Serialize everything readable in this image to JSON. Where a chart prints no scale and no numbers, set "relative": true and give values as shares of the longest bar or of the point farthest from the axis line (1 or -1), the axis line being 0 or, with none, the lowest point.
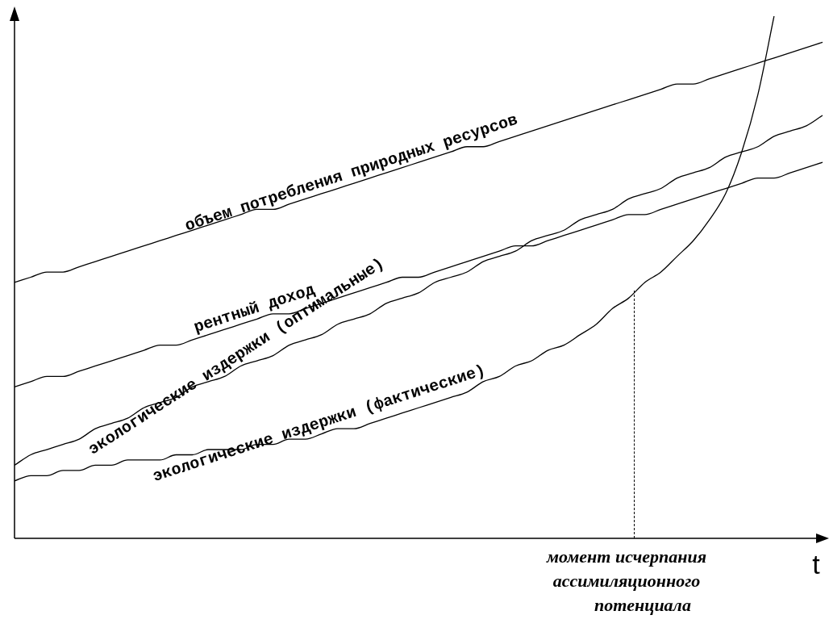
{
  "chart_data": {
    "type": "line",
    "relative": true,
    "xlabel": "t",
    "categories": [
      null,
      null,
      null,
      null,
      null,
      null,
      null,
      null,
      null,
      null,
      null,
      null,
      null,
      null,
      null,
      null,
      null,
      null,
      null,
      null,
      null,
      null,
      null,
      null,
      null,
      null,
      null,
      null,
      null,
      null,
      null,
      null,
      null,
      null,
      null,
      null,
      null,
      null,
      null,
      null,
      null,
      null,
      null,
      null,
      null,
      null,
      null,
      null,
      null,
      null,
      null
    ],
    "series": [
      {
        "name": "объем потребления природных ресурсов",
        "color": "#000000",
        "values": [
          0.49,
          0.5,
          0.51,
          0.51,
          0.52,
          0.53,
          0.54,
          0.55,
          0.56,
          0.57,
          0.58,
          0.59,
          0.6,
          0.61,
          0.62,
          0.63,
          0.63,
          0.64,
          0.65,
          0.66,
          0.67,
          0.68,
          0.69,
          0.7,
          0.71,
          0.72,
          0.73,
          0.74,
          0.75,
          0.75,
          0.76,
          0.77,
          0.78,
          0.79,
          0.8,
          0.81,
          0.82,
          0.83,
          0.84,
          0.85,
          0.86,
          0.87,
          0.87,
          0.88,
          0.89,
          0.9,
          0.91,
          0.92,
          0.93,
          0.94,
          0.95
        ]
      },
      {
        "name": "рентный доход",
        "color": "#000000",
        "values": [
          0.29,
          0.3,
          0.31,
          0.31,
          0.32,
          0.33,
          0.34,
          0.35,
          0.36,
          0.37,
          0.37,
          0.38,
          0.39,
          0.4,
          0.41,
          0.42,
          0.43,
          0.43,
          0.44,
          0.45,
          0.46,
          0.47,
          0.48,
          0.49,
          0.5,
          0.5,
          0.51,
          0.52,
          0.53,
          0.54,
          0.55,
          0.56,
          0.56,
          0.57,
          0.58,
          0.59,
          0.6,
          0.61,
          0.62,
          0.62,
          0.63,
          0.64,
          0.65,
          0.66,
          0.67,
          0.68,
          0.69,
          0.69,
          0.7,
          0.71,
          0.72
        ]
      },
      {
        "name": "экологические издержки (оптимальные)",
        "color": "#000000",
        "values": [
          0.14,
          0.16,
          0.17,
          0.18,
          0.19,
          0.21,
          0.22,
          0.23,
          0.25,
          0.26,
          0.27,
          0.29,
          0.3,
          0.31,
          0.33,
          0.34,
          0.35,
          0.37,
          0.38,
          0.39,
          0.41,
          0.42,
          0.43,
          0.45,
          0.46,
          0.47,
          0.49,
          0.5,
          0.51,
          0.53,
          0.54,
          0.55,
          0.57,
          0.58,
          0.59,
          0.61,
          0.62,
          0.63,
          0.65,
          0.66,
          0.67,
          0.69,
          0.7,
          0.71,
          0.73,
          0.74,
          0.75,
          0.77,
          0.78,
          0.79,
          0.81
        ]
      },
      {
        "name": "экологические издержки (фактические)",
        "color": "#000000",
        "values": [
          0.11,
          0.12,
          0.12,
          0.13,
          0.13,
          0.14,
          0.14,
          0.15,
          0.15,
          0.15,
          0.16,
          0.16,
          0.17,
          0.17,
          0.17,
          0.18,
          0.18,
          0.19,
          0.19,
          0.2,
          0.21,
          0.21,
          0.22,
          0.23,
          0.24,
          0.25,
          0.26,
          0.27,
          0.28,
          0.3,
          0.31,
          0.33,
          0.34,
          0.36,
          0.37,
          0.39,
          0.41,
          0.44,
          0.46,
          0.49,
          0.51,
          0.54,
          0.57,
          0.61,
          0.66,
          0.74,
          0.85,
          1.0,
          null,
          null,
          null
        ]
      }
    ],
    "annotations": [
      "момент исчерпания ассимиляционного потенциала"
    ]
  }
}
